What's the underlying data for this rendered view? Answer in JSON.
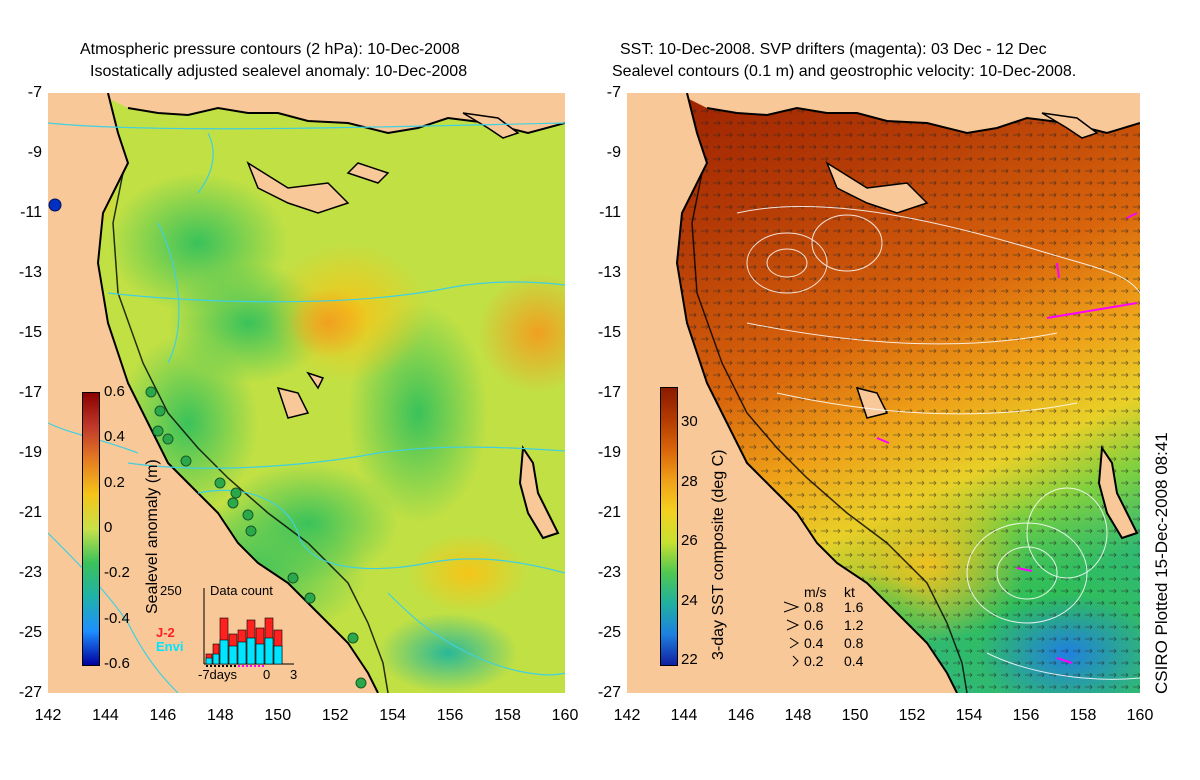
{
  "left_panel": {
    "title_line1": "Atmospheric pressure contours (2 hPa): 10-Dec-2008",
    "title_line2": "Isostatically adjusted sealevel anomaly: 10-Dec-2008",
    "colorbar": {
      "label": "Sealevel anomaly (m)",
      "ticks": [
        "0.6",
        "0.4",
        "0.2",
        "0",
        "-0.2",
        "-0.4",
        "-0.6"
      ],
      "colors": [
        "#8b0000",
        "#c0392b",
        "#e67e22",
        "#f5c518",
        "#c8e04a",
        "#3ac25a",
        "#20b2aa",
        "#1e90ff",
        "#0000a0"
      ]
    },
    "inset": {
      "title": "Data count",
      "max_label": "250",
      "x_labels": [
        "-7days",
        "0",
        "3"
      ],
      "legend": [
        "J-2",
        "Envi"
      ],
      "legend_colors": [
        "#ff2020",
        "#00e5ff"
      ]
    }
  },
  "right_panel": {
    "title_line1": "SST: 10-Dec-2008. SVP drifters (magenta): 03 Dec - 12 Dec",
    "title_line2": "Sealevel contours (0.1 m) and geostrophic velocity: 10-Dec-2008.",
    "colorbar": {
      "label": "3-day SST composite (deg C)",
      "ticks": [
        "30",
        "28",
        "26",
        "24",
        "22"
      ],
      "colors": [
        "#8b1a00",
        "#b33a00",
        "#d9640a",
        "#f0a018",
        "#f5d020",
        "#c8e030",
        "#50c850",
        "#20b0a0",
        "#1e80e0",
        "#1020a0"
      ]
    },
    "velocity_legend": {
      "header": [
        "m/s",
        "kt"
      ],
      "rows": [
        [
          "0.8",
          "1.6"
        ],
        [
          "0.6",
          "1.2"
        ],
        [
          "0.4",
          "0.8"
        ],
        [
          "0.2",
          "0.4"
        ]
      ]
    }
  },
  "axes": {
    "lat_ticks": [
      "-7",
      "-9",
      "-11",
      "-13",
      "-15",
      "-17",
      "-19",
      "-21",
      "-23",
      "-25",
      "-27"
    ],
    "lon_ticks": [
      "142",
      "144",
      "146",
      "148",
      "150",
      "152",
      "154",
      "156",
      "158",
      "160"
    ]
  },
  "credit": "CSIRO Plotted 15-Dec-2008 08:41",
  "colors": {
    "land": "#f8c898",
    "coast": "#000000",
    "pressure_contour": "#40d0e0",
    "drifters": "#ff00ff",
    "tide_gauge": "#2aa84a"
  }
}
